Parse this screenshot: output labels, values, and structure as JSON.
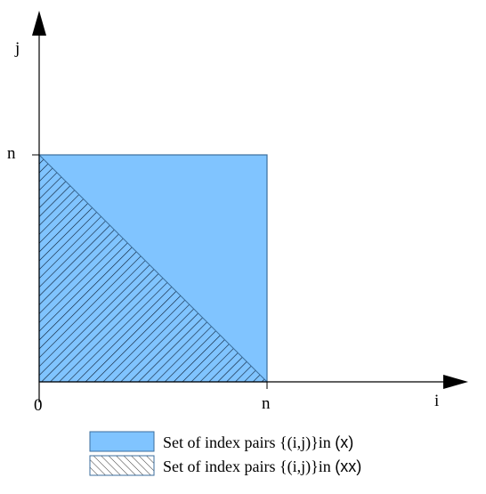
{
  "axes": {
    "x_label": "i",
    "y_label": "j",
    "origin_label": "0",
    "x_tick_label": "n",
    "y_tick_label": "n"
  },
  "colors": {
    "square_fill": "#80c4ff",
    "square_stroke": "#3b6e9c",
    "hatch_stroke": "#0a1a2e",
    "axis": "#000000"
  },
  "legend": [
    {
      "swatch": "solid",
      "text": "Set of index pairs {(i,j)}in ",
      "suffix": "(x)"
    },
    {
      "swatch": "hatched",
      "text": "Set of index pairs {(i,j)}in ",
      "suffix": "(xx)"
    }
  ]
}
